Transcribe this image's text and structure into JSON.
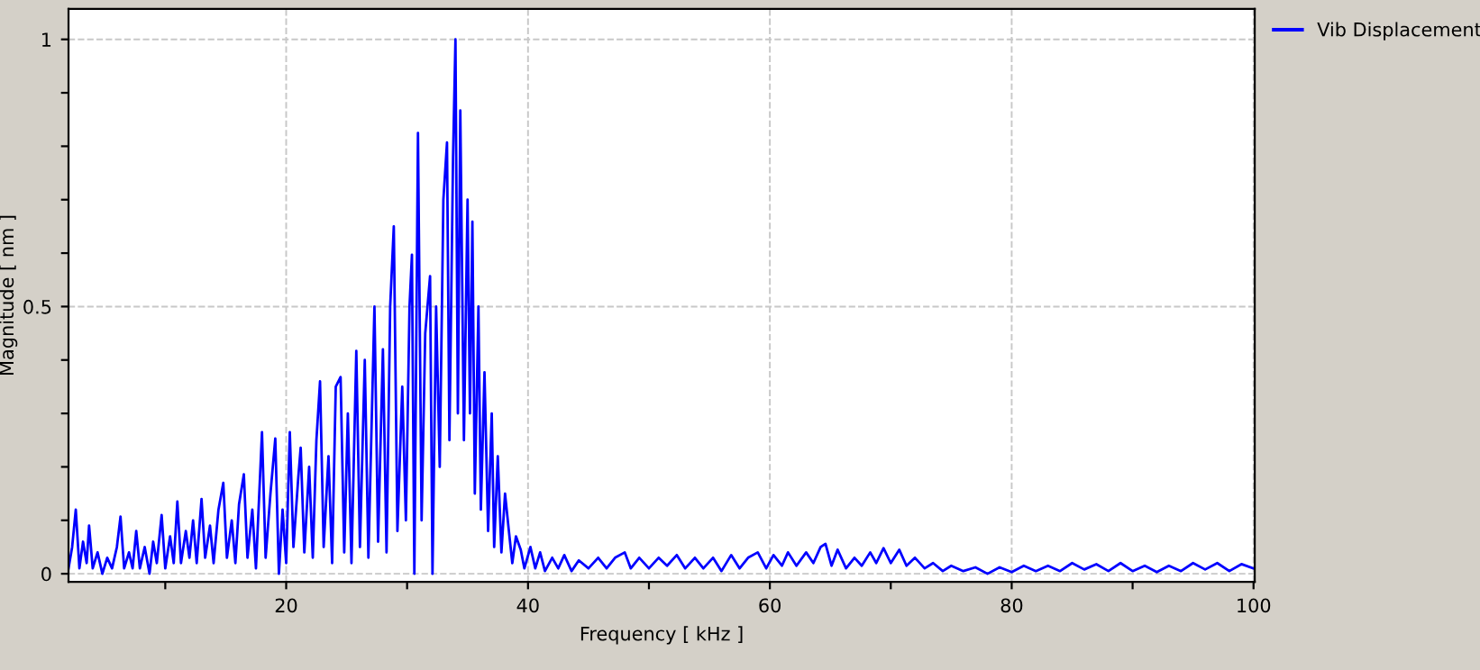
{
  "chart_data": {
    "type": "line",
    "xlabel": "Frequency [ kHz ]",
    "ylabel": "Magnitude [ nm ]",
    "xlim": [
      2,
      100.1
    ],
    "ylim": [
      -0.015,
      1.057
    ],
    "xticks": [
      {
        "value": 10,
        "label": null
      },
      20,
      {
        "value": 30,
        "label": null
      },
      40,
      {
        "value": 50,
        "label": null
      },
      60,
      {
        "value": 70,
        "label": null
      },
      80,
      {
        "value": 90,
        "label": null
      },
      100
    ],
    "yticks": [
      0,
      {
        "value": 0.1,
        "label": null
      },
      {
        "value": 0.2,
        "label": null
      },
      {
        "value": 0.3,
        "label": null
      },
      {
        "value": 0.4,
        "label": null
      },
      0.5,
      {
        "value": 0.6,
        "label": null
      },
      {
        "value": 0.7,
        "label": null
      },
      {
        "value": 0.8,
        "label": null
      },
      {
        "value": 0.9,
        "label": null
      },
      1
    ],
    "grid": true,
    "legend": "right",
    "line_style": "solid",
    "marker": "none",
    "x": [
      2.0,
      2.3,
      2.6,
      2.9,
      3.2,
      3.5,
      3.7,
      4.0,
      4.4,
      4.8,
      5.2,
      5.6,
      6.0,
      6.3,
      6.6,
      7.0,
      7.3,
      7.6,
      7.9,
      8.3,
      8.7,
      9.0,
      9.3,
      9.7,
      10.0,
      10.4,
      10.7,
      11.0,
      11.3,
      11.7,
      12.0,
      12.3,
      12.6,
      13.0,
      13.3,
      13.7,
      14.0,
      14.4,
      14.8,
      15.1,
      15.5,
      15.8,
      16.1,
      16.5,
      16.8,
      17.2,
      17.5,
      18.0,
      18.3,
      18.7,
      19.1,
      19.4,
      19.7,
      20.0,
      20.3,
      20.6,
      21.0,
      21.2,
      21.5,
      21.9,
      22.2,
      22.5,
      22.8,
      23.1,
      23.5,
      23.8,
      24.1,
      24.5,
      24.8,
      25.1,
      25.4,
      25.8,
      26.1,
      26.5,
      26.8,
      27.3,
      27.6,
      28.0,
      28.3,
      28.6,
      28.9,
      29.2,
      29.6,
      29.9,
      30.2,
      30.4,
      30.6,
      30.9,
      31.2,
      31.5,
      31.9,
      32.1,
      32.4,
      32.7,
      33.0,
      33.3,
      33.5,
      33.8,
      34.0,
      34.2,
      34.4,
      34.7,
      35.0,
      35.2,
      35.4,
      35.6,
      35.9,
      36.1,
      36.4,
      36.7,
      37.0,
      37.2,
      37.5,
      37.8,
      38.1,
      38.4,
      38.7,
      39.0,
      39.4,
      39.7,
      40.2,
      40.6,
      41.0,
      41.4,
      42.0,
      42.5,
      43.0,
      43.6,
      44.2,
      45.0,
      45.8,
      46.5,
      47.2,
      48.0,
      48.5,
      49.2,
      50.0,
      50.8,
      51.5,
      52.3,
      53.0,
      53.8,
      54.5,
      55.3,
      56.0,
      56.8,
      57.5,
      58.2,
      59.0,
      59.7,
      60.3,
      61.0,
      61.5,
      62.2,
      63.0,
      63.6,
      64.2,
      64.6,
      65.1,
      65.6,
      66.3,
      67.0,
      67.6,
      68.3,
      68.8,
      69.4,
      70.0,
      70.7,
      71.3,
      72.0,
      72.8,
      73.5,
      74.3,
      75.0,
      76.0,
      77.0,
      78.0,
      79.0,
      80.0,
      81.0,
      82.0,
      83.0,
      84.0,
      85.0,
      86.0,
      87.0,
      88.0,
      89.0,
      90.0,
      91.0,
      92.0,
      93.0,
      94.0,
      95.0,
      96.0,
      97.0,
      98.0,
      99.0,
      100.0
    ],
    "series": [
      {
        "name": "Vib Displacement",
        "color": "#0000ff",
        "values": [
          0.01,
          0.05,
          0.12,
          0.01,
          0.06,
          0.02,
          0.09,
          0.01,
          0.04,
          0.0,
          0.03,
          0.01,
          0.05,
          0.107,
          0.01,
          0.04,
          0.01,
          0.08,
          0.01,
          0.05,
          0.0,
          0.06,
          0.02,
          0.11,
          0.01,
          0.07,
          0.02,
          0.135,
          0.02,
          0.08,
          0.03,
          0.1,
          0.02,
          0.14,
          0.03,
          0.09,
          0.02,
          0.12,
          0.17,
          0.03,
          0.1,
          0.02,
          0.13,
          0.186,
          0.03,
          0.12,
          0.01,
          0.265,
          0.03,
          0.15,
          0.253,
          0.0,
          0.12,
          0.02,
          0.265,
          0.05,
          0.18,
          0.236,
          0.04,
          0.2,
          0.03,
          0.25,
          0.36,
          0.05,
          0.22,
          0.02,
          0.35,
          0.368,
          0.04,
          0.3,
          0.02,
          0.417,
          0.05,
          0.4,
          0.03,
          0.5,
          0.06,
          0.42,
          0.04,
          0.5,
          0.65,
          0.08,
          0.35,
          0.1,
          0.5,
          0.597,
          0.0,
          0.825,
          0.1,
          0.45,
          0.557,
          0.0,
          0.5,
          0.2,
          0.7,
          0.807,
          0.25,
          0.78,
          1.0,
          0.3,
          0.867,
          0.25,
          0.7,
          0.3,
          0.659,
          0.15,
          0.5,
          0.12,
          0.377,
          0.08,
          0.3,
          0.05,
          0.22,
          0.04,
          0.15,
          0.084,
          0.02,
          0.07,
          0.045,
          0.01,
          0.05,
          0.01,
          0.04,
          0.005,
          0.03,
          0.01,
          0.035,
          0.005,
          0.025,
          0.01,
          0.03,
          0.01,
          0.03,
          0.04,
          0.01,
          0.03,
          0.01,
          0.03,
          0.015,
          0.035,
          0.01,
          0.03,
          0.01,
          0.03,
          0.005,
          0.035,
          0.01,
          0.03,
          0.04,
          0.01,
          0.035,
          0.015,
          0.04,
          0.015,
          0.04,
          0.02,
          0.05,
          0.056,
          0.015,
          0.045,
          0.01,
          0.03,
          0.015,
          0.04,
          0.02,
          0.048,
          0.02,
          0.045,
          0.015,
          0.03,
          0.01,
          0.02,
          0.005,
          0.015,
          0.005,
          0.012,
          0.0,
          0.012,
          0.003,
          0.015,
          0.005,
          0.015,
          0.005,
          0.02,
          0.008,
          0.018,
          0.005,
          0.02,
          0.005,
          0.015,
          0.003,
          0.015,
          0.005,
          0.02,
          0.008,
          0.02,
          0.005,
          0.018,
          0.01
        ]
      }
    ]
  }
}
